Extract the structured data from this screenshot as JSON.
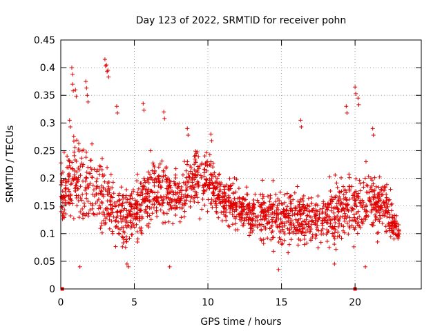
{
  "chart_data": {
    "type": "scatter",
    "title": "Day 123 of 2022, SRMTID for receiver pohn",
    "xlabel": "GPS time / hours",
    "ylabel": "SRMTID / TECUs",
    "xlim": [
      0,
      24.5
    ],
    "ylim": [
      0,
      0.45
    ],
    "x_ticks": [
      0,
      5,
      10,
      15,
      20
    ],
    "x_tick_labels": [
      "0",
      "5",
      "10",
      "15",
      "20"
    ],
    "y_ticks": [
      0,
      0.05,
      0.1,
      0.15,
      0.2,
      0.25,
      0.3,
      0.35,
      0.4,
      0.45
    ],
    "y_tick_labels": [
      "0",
      "0.05",
      "0.1",
      "0.15",
      "0.2",
      "0.25",
      "0.3",
      "0.35",
      "0.4",
      "0.45"
    ],
    "grid": true,
    "marker": "plus",
    "color": "#e00000",
    "series": [
      {
        "name": "SRMTID",
        "envelope": {
          "description": "dense scatter from 0 to 23 h; per-hour centre and spread of SRMTID values",
          "hours": [
            0,
            1,
            2,
            3,
            4,
            5,
            6,
            7,
            8,
            9,
            10,
            11,
            12,
            13,
            14,
            15,
            16,
            17,
            18,
            19,
            20,
            21,
            22,
            23
          ],
          "center": [
            0.17,
            0.2,
            0.18,
            0.17,
            0.13,
            0.14,
            0.17,
            0.18,
            0.16,
            0.2,
            0.2,
            0.16,
            0.15,
            0.13,
            0.14,
            0.13,
            0.13,
            0.13,
            0.13,
            0.14,
            0.15,
            0.16,
            0.15,
            0.1
          ],
          "spread": [
            0.06,
            0.08,
            0.07,
            0.07,
            0.06,
            0.05,
            0.06,
            0.06,
            0.05,
            0.05,
            0.05,
            0.04,
            0.04,
            0.04,
            0.05,
            0.05,
            0.05,
            0.05,
            0.05,
            0.06,
            0.06,
            0.05,
            0.05,
            0.02
          ]
        },
        "peaks": [
          {
            "x": 0.6,
            "y": 0.305
          },
          {
            "x": 0.75,
            "y": 0.4
          },
          {
            "x": 0.8,
            "y": 0.37
          },
          {
            "x": 1.0,
            "y": 0.36
          },
          {
            "x": 1.7,
            "y": 0.375
          },
          {
            "x": 1.8,
            "y": 0.35
          },
          {
            "x": 3.0,
            "y": 0.415
          },
          {
            "x": 3.1,
            "y": 0.405
          },
          {
            "x": 3.2,
            "y": 0.395
          },
          {
            "x": 3.8,
            "y": 0.33
          },
          {
            "x": 5.6,
            "y": 0.335
          },
          {
            "x": 7.0,
            "y": 0.32
          },
          {
            "x": 8.6,
            "y": 0.29
          },
          {
            "x": 10.2,
            "y": 0.28
          },
          {
            "x": 16.3,
            "y": 0.305
          },
          {
            "x": 19.4,
            "y": 0.33
          },
          {
            "x": 20.0,
            "y": 0.365
          },
          {
            "x": 20.2,
            "y": 0.345
          },
          {
            "x": 21.2,
            "y": 0.29
          }
        ],
        "lows": [
          {
            "x": 1.3,
            "y": 0.04
          },
          {
            "x": 4.5,
            "y": 0.045
          },
          {
            "x": 4.6,
            "y": 0.04
          },
          {
            "x": 7.4,
            "y": 0.04
          },
          {
            "x": 14.8,
            "y": 0.035
          },
          {
            "x": 18.6,
            "y": 0.045
          },
          {
            "x": 20.7,
            "y": 0.04
          }
        ],
        "zero_points": [
          {
            "x": 0.1,
            "y": 0.0
          },
          {
            "x": 20.0,
            "y": 0.0
          }
        ]
      }
    ]
  }
}
